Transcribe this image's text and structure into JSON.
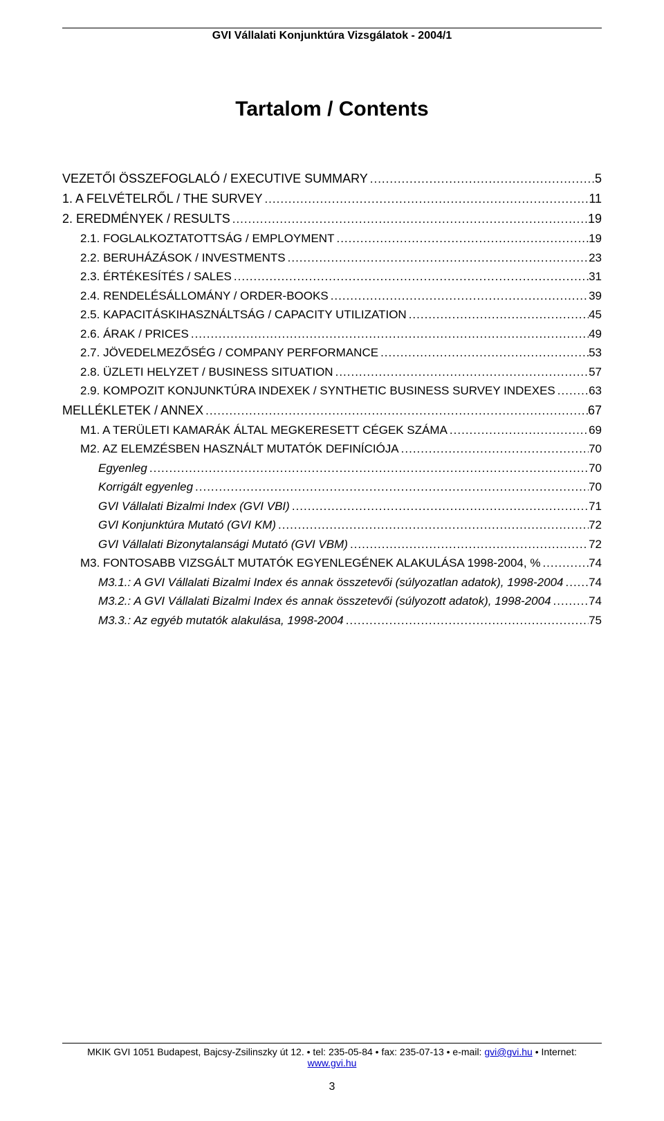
{
  "header": "GVI Vállalati Konjunktúra Vizsgálatok - 2004/1",
  "title": "Tartalom / Contents",
  "toc": [
    {
      "level": 0,
      "label": "VEZETŐI ÖSSZEFOGLALÓ / EXECUTIVE SUMMARY",
      "page": "5",
      "style": "plain"
    },
    {
      "level": 0,
      "label": "1. A FELVÉTELRŐL / THE SURVEY",
      "page": "11",
      "style": "plain"
    },
    {
      "level": 0,
      "label": "2. EREDMÉNYEK / RESULTS",
      "page": "19",
      "style": "plain"
    },
    {
      "level": 1,
      "label": "2.1. FOGLALKOZTATOTTSÁG / EMPLOYMENT",
      "page": "19",
      "style": "sc"
    },
    {
      "level": 1,
      "label": "2.2. BERUHÁZÁSOK / INVESTMENTS",
      "page": "23",
      "style": "sc"
    },
    {
      "level": 1,
      "label": "2.3. ÉRTÉKESÍTÉS / SALES",
      "page": "31",
      "style": "sc"
    },
    {
      "level": 1,
      "label": "2.4. RENDELÉSÁLLOMÁNY / ORDER-BOOKS",
      "page": "39",
      "style": "sc"
    },
    {
      "level": 1,
      "label": "2.5. KAPACITÁSKIHASZNÁLTSÁG / CAPACITY UTILIZATION",
      "page": "45",
      "style": "sc"
    },
    {
      "level": 1,
      "label": "2.6. ÁRAK / PRICES",
      "page": "49",
      "style": "sc"
    },
    {
      "level": 1,
      "label": "2.7. JÖVEDELMEZŐSÉG / COMPANY PERFORMANCE",
      "page": "53",
      "style": "sc"
    },
    {
      "level": 1,
      "label": "2.8. ÜZLETI HELYZET / BUSINESS SITUATION",
      "page": "57",
      "style": "sc"
    },
    {
      "level": 1,
      "label": "2.9. KOMPOZIT KONJUNKTÚRA INDEXEK / SYNTHETIC BUSINESS SURVEY INDEXES",
      "page": "63",
      "style": "sc"
    },
    {
      "level": 0,
      "label": "MELLÉKLETEK / ANNEX",
      "page": "67",
      "style": "plain"
    },
    {
      "level": 1,
      "label": "M1. A TERÜLETI KAMARÁK ÁLTAL MEGKERESETT CÉGEK SZÁMA",
      "page": "69",
      "style": "sc"
    },
    {
      "level": 1,
      "label": "M2. AZ ELEMZÉSBEN HASZNÁLT MUTATÓK DEFINÍCIÓJA",
      "page": "70",
      "style": "sc"
    },
    {
      "level": 2,
      "label": "Egyenleg",
      "page": "70",
      "style": "italic"
    },
    {
      "level": 2,
      "label": "Korrigált egyenleg",
      "page": "70",
      "style": "italic"
    },
    {
      "level": 2,
      "label": "GVI Vállalati Bizalmi Index (GVI VBI)",
      "page": "71",
      "style": "italic"
    },
    {
      "level": 2,
      "label": "GVI Konjunktúra Mutató (GVI KM)",
      "page": "72",
      "style": "italic"
    },
    {
      "level": 2,
      "label": "GVI Vállalati Bizonytalansági Mutató (GVI VBM)",
      "page": "72",
      "style": "italic"
    },
    {
      "level": 1,
      "label": "M3. FONTOSABB VIZSGÁLT MUTATÓK EGYENLEGÉNEK ALAKULÁSA 1998-2004, %",
      "page": "74",
      "style": "sc"
    },
    {
      "level": 2,
      "label": "M3.1.: A GVI Vállalati Bizalmi Index és annak összetevői (súlyozatlan adatok), 1998-2004",
      "page": "74",
      "style": "italic"
    },
    {
      "level": 2,
      "label": "M3.2.: A GVI Vállalati Bizalmi Index és annak összetevői (súlyozott adatok), 1998-2004",
      "page": "74",
      "style": "italic"
    },
    {
      "level": 2,
      "label": "M3.3.: Az egyéb mutatók alakulása, 1998-2004",
      "page": "75",
      "style": "italic"
    }
  ],
  "footer": {
    "prefix": "MKIK GVI 1051 Budapest, Bajcsy-Zsilinszky út 12. • tel: 235-05-84 • fax: 235-07-13 • e-mail: ",
    "email": "gvi@gvi.hu",
    "mid": " • Internet: ",
    "url": "www.gvi.hu"
  },
  "page_number": "3"
}
